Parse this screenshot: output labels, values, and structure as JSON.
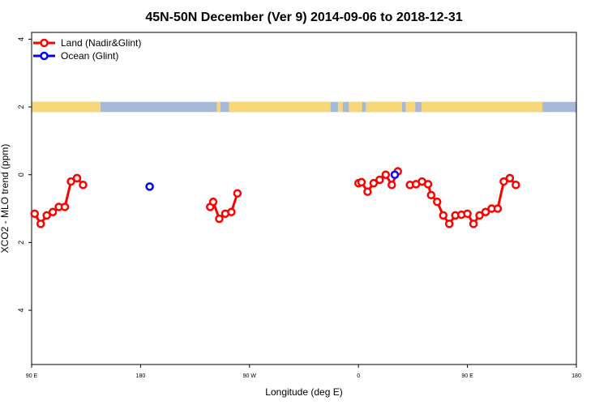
{
  "chart_data": {
    "type": "line",
    "title": "45N-50N December (Ver 9)   2014-09-06 to 2018-12-31",
    "xlabel": "Longitude (deg E)",
    "ylabel": "XCO2 - MLO trend (ppm)",
    "x_ticks": [
      {
        "value": 90,
        "label": "90 E"
      },
      {
        "value": 180,
        "label": "180"
      },
      {
        "value": 270,
        "label": "90 W"
      },
      {
        "value": 360,
        "label": "0"
      },
      {
        "value": 450,
        "label": "90 E"
      },
      {
        "value": 540,
        "label": "180"
      }
    ],
    "y_ticks": [
      {
        "value": 4,
        "label": "4"
      },
      {
        "value": 2,
        "label": "2"
      },
      {
        "value": 0,
        "label": "0"
      },
      {
        "value": -2,
        "label": "2"
      },
      {
        "value": -4,
        "label": "4"
      }
    ],
    "xlim": [
      90,
      540
    ],
    "ylim": [
      -5.6,
      4.2
    ],
    "legend_position": "top-left",
    "map_strip": {
      "y_center": 2.0,
      "height": 0.3,
      "land_color": "#f6d77a",
      "ocean_color": "#a6b9d6"
    },
    "series": [
      {
        "name": "Land (Nadir&Glint)",
        "color": "#ff0000",
        "segments": [
          [
            [
              92.5,
              -1.15
            ],
            [
              97.5,
              -1.45
            ],
            [
              102.5,
              -1.2
            ],
            [
              107.5,
              -1.1
            ],
            [
              112.5,
              -0.95
            ],
            [
              117.5,
              -0.95
            ],
            [
              122.5,
              -0.2
            ],
            [
              127.5,
              -0.1
            ],
            [
              132.5,
              -0.3
            ]
          ],
          [
            [
              237.5,
              -0.95
            ],
            [
              240,
              -0.8
            ],
            [
              245,
              -1.3
            ],
            [
              250,
              -1.15
            ],
            [
              255,
              -1.1
            ],
            [
              260,
              -0.55
            ]
          ],
          [
            [
              360,
              -0.25
            ],
            [
              362.5,
              -0.22
            ],
            [
              367.5,
              -0.5
            ],
            [
              372.5,
              -0.25
            ],
            [
              377.5,
              -0.15
            ],
            [
              382.5,
              0.0
            ],
            [
              387.5,
              -0.3
            ],
            [
              392.5,
              0.1
            ]
          ],
          [
            [
              402.5,
              -0.3
            ],
            [
              407.5,
              -0.28
            ],
            [
              412.5,
              -0.2
            ],
            [
              417.5,
              -0.28
            ],
            [
              420,
              -0.6
            ],
            [
              425,
              -0.8
            ],
            [
              430,
              -1.2
            ],
            [
              435,
              -1.45
            ],
            [
              440,
              -1.2
            ],
            [
              445,
              -1.18
            ],
            [
              450,
              -1.15
            ],
            [
              455,
              -1.45
            ],
            [
              460,
              -1.2
            ],
            [
              465,
              -1.1
            ],
            [
              470,
              -1.0
            ],
            [
              475,
              -1.0
            ],
            [
              480,
              -0.2
            ],
            [
              485,
              -0.1
            ],
            [
              490,
              -0.3
            ]
          ]
        ]
      },
      {
        "name": "Ocean (Glint)",
        "color": "#0000ff",
        "segments": [
          [
            [
              187.5,
              -0.35
            ]
          ],
          [
            [
              390,
              0.0
            ]
          ]
        ]
      }
    ]
  }
}
